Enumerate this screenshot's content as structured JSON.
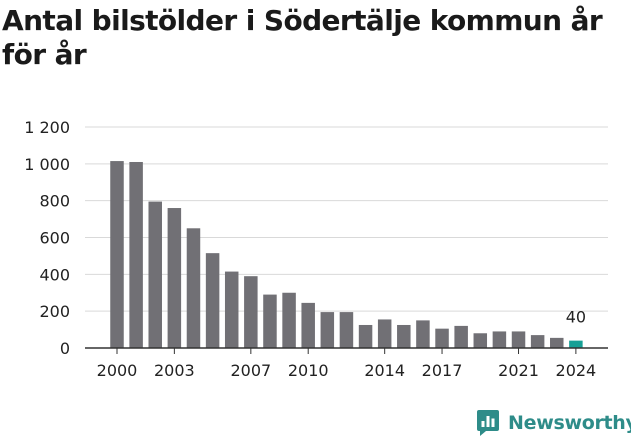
{
  "chart_data": {
    "type": "bar",
    "title": "Antal bilstölder i Södertälje kommun år för år",
    "categories": [
      "2000",
      "2001",
      "2002",
      "2003",
      "2004",
      "2005",
      "2006",
      "2007",
      "2008",
      "2009",
      "2010",
      "2011",
      "2012",
      "2013",
      "2014",
      "2015",
      "2016",
      "2017",
      "2018",
      "2019",
      "2020",
      "2021",
      "2022",
      "2023",
      "2024"
    ],
    "values": [
      1015,
      1010,
      795,
      760,
      650,
      515,
      415,
      390,
      290,
      300,
      245,
      195,
      195,
      125,
      155,
      125,
      150,
      105,
      120,
      80,
      90,
      90,
      70,
      55,
      40
    ],
    "x_tick_labels": [
      "2000",
      "2003",
      "2007",
      "2010",
      "2014",
      "2017",
      "2021",
      "2024"
    ],
    "y_ticks": [
      0,
      200,
      400,
      600,
      800,
      1000,
      1200
    ],
    "y_tick_labels": [
      "0",
      "200",
      "400",
      "600",
      "800",
      "1 000",
      "1 200"
    ],
    "ylim": [
      0,
      1200
    ],
    "grid": true,
    "highlight_index": 24,
    "highlight_label": "40",
    "colors": {
      "bar": "#717075",
      "highlight": "#17a096",
      "grid": "#d9d9d9",
      "axis": "#333333"
    }
  },
  "brand": {
    "name": "Newsworthy",
    "icon": "bar-chart-icon",
    "color": "#2e8c89"
  }
}
